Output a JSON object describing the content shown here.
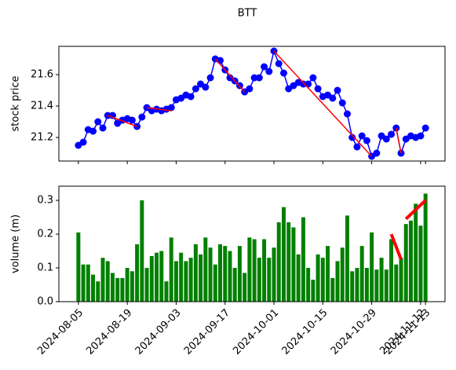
{
  "chart_data": {
    "type": "line",
    "title": "BTT",
    "categories": [
      "2024-08-05",
      null,
      null,
      null,
      null,
      null,
      null,
      null,
      null,
      null,
      "2024-08-19",
      null,
      null,
      null,
      null,
      null,
      null,
      null,
      null,
      null,
      "2024-09-03",
      null,
      null,
      null,
      null,
      null,
      null,
      null,
      null,
      null,
      "2024-09-17",
      null,
      null,
      null,
      null,
      null,
      null,
      null,
      null,
      null,
      "2024-10-01",
      null,
      null,
      null,
      null,
      null,
      null,
      null,
      null,
      null,
      "2024-10-15",
      null,
      null,
      null,
      null,
      null,
      null,
      null,
      null,
      null,
      "2024-10-29",
      null,
      null,
      null,
      null,
      null,
      null,
      null,
      null,
      null,
      "2024-11-12",
      "2024-11-13"
    ],
    "charts": [
      {
        "type": "line",
        "ylabel": "stock price",
        "ylabel_color": "#0000ff",
        "ylim": [
          21.05,
          21.78
        ],
        "yticks": [
          21.2,
          21.4,
          21.6
        ],
        "series": [
          {
            "color": "#0000ff",
            "values": [
              21.15,
              21.17,
              21.25,
              21.24,
              21.3,
              21.26,
              21.34,
              21.34,
              21.29,
              21.31,
              21.32,
              21.31,
              21.27,
              21.33,
              21.39,
              21.37,
              21.38,
              21.37,
              21.38,
              21.39,
              21.44,
              21.45,
              21.47,
              21.46,
              21.51,
              21.54,
              21.52,
              21.58,
              21.7,
              21.69,
              21.63,
              21.58,
              21.56,
              21.53,
              21.49,
              21.51,
              21.58,
              21.58,
              21.65,
              21.62,
              21.75,
              21.67,
              21.61,
              21.51,
              21.53,
              21.55,
              21.54,
              21.54,
              21.58,
              21.51,
              21.46,
              21.47,
              21.45,
              21.5,
              21.42,
              21.35,
              21.2,
              21.14,
              21.21,
              21.18,
              21.08,
              21.1,
              21.21,
              21.19,
              21.22,
              21.26,
              21.1,
              21.19,
              21.21,
              21.2,
              21.21,
              21.26
            ]
          }
        ],
        "lines": [
          {
            "color": "#ff0000",
            "x": [
              6,
              12
            ],
            "y": [
              21.34,
              21.27
            ]
          },
          {
            "color": "#ff0000",
            "x": [
              14,
              19
            ],
            "y": [
              21.39,
              21.37
            ]
          },
          {
            "color": "#ff0000",
            "x": [
              28,
              34
            ],
            "y": [
              21.7,
              21.49
            ]
          },
          {
            "color": "#ff0000",
            "x": [
              40,
              60
            ],
            "y": [
              21.75,
              21.08
            ]
          },
          {
            "color": "#ff0000",
            "x": [
              65,
              66
            ],
            "y": [
              21.26,
              21.1
            ]
          }
        ]
      },
      {
        "type": "bar",
        "ylabel": "volume (m)",
        "ylabel_color": "#008000",
        "ylim": [
          0,
          0.342
        ],
        "yticks": [
          {
            "value": 0,
            "label": "0.0"
          },
          0.1,
          0.2,
          0.3
        ],
        "series": [
          {
            "color": "#008000",
            "values": [
              0.205,
              0.11,
              0.11,
              0.08,
              0.06,
              0.13,
              0.12,
              0.085,
              0.07,
              0.07,
              0.1,
              0.09,
              0.17,
              0.3,
              0.1,
              0.135,
              0.145,
              0.15,
              0.06,
              0.19,
              0.12,
              0.145,
              0.12,
              0.13,
              0.17,
              0.14,
              0.19,
              0.16,
              0.11,
              0.17,
              0.165,
              0.15,
              0.1,
              0.165,
              0.085,
              0.19,
              0.185,
              0.13,
              0.185,
              0.13,
              0.16,
              0.235,
              0.28,
              0.235,
              0.22,
              0.14,
              0.25,
              0.1,
              0.065,
              0.14,
              0.13,
              0.165,
              0.07,
              0.12,
              0.16,
              0.255,
              0.09,
              0.1,
              0.165,
              0.1,
              0.205,
              0.095,
              0.13,
              0.095,
              0.185,
              0.11,
              0.13,
              0.23,
              0.24,
              0.29,
              0.225,
              0.32
            ]
          }
        ],
        "lines": [
          {
            "color": "#ff0000",
            "width": 4,
            "x": [
              64,
              66
            ],
            "y": [
              0.2,
              0.125
            ]
          },
          {
            "color": "#ff0000",
            "width": 4,
            "x": [
              67,
              71
            ],
            "y": [
              0.245,
              0.3
            ]
          }
        ]
      }
    ]
  }
}
